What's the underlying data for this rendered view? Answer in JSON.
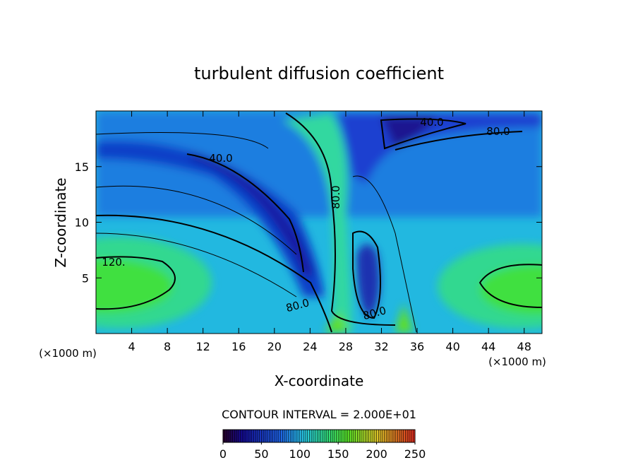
{
  "chart_data": {
    "type": "contour",
    "title": "turbulent diffusion coefficient",
    "x_label": "X-coordinate",
    "y_label": "Z-coordinate",
    "x_unit": "(×1000 m)",
    "y_unit": "(×1000 m)",
    "xlim": [
      0,
      50
    ],
    "ylim": [
      0,
      20
    ],
    "xticks": [
      4,
      8,
      12,
      16,
      20,
      24,
      28,
      32,
      36,
      40,
      44,
      48
    ],
    "yticks": [
      5,
      10,
      15
    ],
    "contour_interval_text": "CONTOUR INTERVAL = 2.000E+01",
    "contour_labels": [
      {
        "value": 40,
        "label": "40.0"
      },
      {
        "value": 40,
        "label": "40.0"
      },
      {
        "value": 80,
        "label": "80.0"
      },
      {
        "value": 80,
        "label": "80.0"
      },
      {
        "value": 80,
        "label": "80.0"
      },
      {
        "value": 80,
        "label": "80.0"
      },
      {
        "value": 120,
        "label": "120."
      }
    ],
    "colorbar": {
      "lim": [
        0,
        250
      ],
      "ticks": [
        0,
        50,
        100,
        150,
        200,
        250
      ]
    }
  }
}
